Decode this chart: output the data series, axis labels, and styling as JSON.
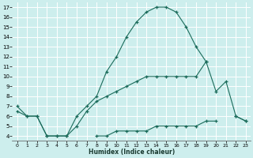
{
  "xlabel": "Humidex (Indice chaleur)",
  "bg_color": "#cdeeed",
  "grid_color": "#ffffff",
  "line_color": "#1a6b5a",
  "xlim": [
    -0.5,
    23.5
  ],
  "ylim": [
    3.5,
    17.5
  ],
  "xticks": [
    0,
    1,
    2,
    3,
    4,
    5,
    6,
    7,
    8,
    9,
    10,
    11,
    12,
    13,
    14,
    15,
    16,
    17,
    18,
    19,
    20,
    21,
    22,
    23
  ],
  "yticks": [
    4,
    5,
    6,
    7,
    8,
    9,
    10,
    11,
    12,
    13,
    14,
    15,
    16,
    17
  ],
  "series": [
    {
      "x": [
        0,
        1,
        2,
        3,
        4,
        5,
        6,
        7,
        8,
        9,
        10,
        11,
        12,
        13,
        14,
        15,
        16,
        17,
        18,
        19,
        20,
        21,
        22,
        23
      ],
      "y": [
        7,
        6,
        6,
        4,
        4,
        4,
        6,
        7,
        8,
        10.5,
        12,
        14,
        15.5,
        16.5,
        17,
        17,
        16.5,
        15,
        13,
        11.5,
        null,
        null,
        6,
        5.5
      ]
    },
    {
      "x": [
        0,
        1,
        2,
        3,
        4,
        5,
        6,
        7,
        8,
        9,
        10,
        11,
        12,
        13,
        14,
        15,
        16,
        17,
        18,
        19,
        20,
        21,
        22,
        23
      ],
      "y": [
        6.5,
        6,
        6,
        4,
        4,
        4,
        5,
        6.5,
        7.5,
        8,
        8.5,
        9,
        9.5,
        10,
        10,
        10,
        10,
        10,
        10,
        11.5,
        8.5,
        9.5,
        6,
        5.5
      ]
    },
    {
      "x": [
        0,
        1,
        2,
        3,
        4,
        5,
        6,
        7,
        8,
        9,
        10,
        11,
        12,
        13,
        14,
        15,
        16,
        17,
        18,
        19,
        20,
        21,
        22,
        23
      ],
      "y": [
        null,
        null,
        null,
        null,
        null,
        null,
        null,
        null,
        4,
        4,
        4.5,
        4.5,
        4.5,
        4.5,
        5,
        5,
        5,
        5,
        5,
        5.5,
        5.5,
        null,
        null,
        null
      ]
    }
  ]
}
